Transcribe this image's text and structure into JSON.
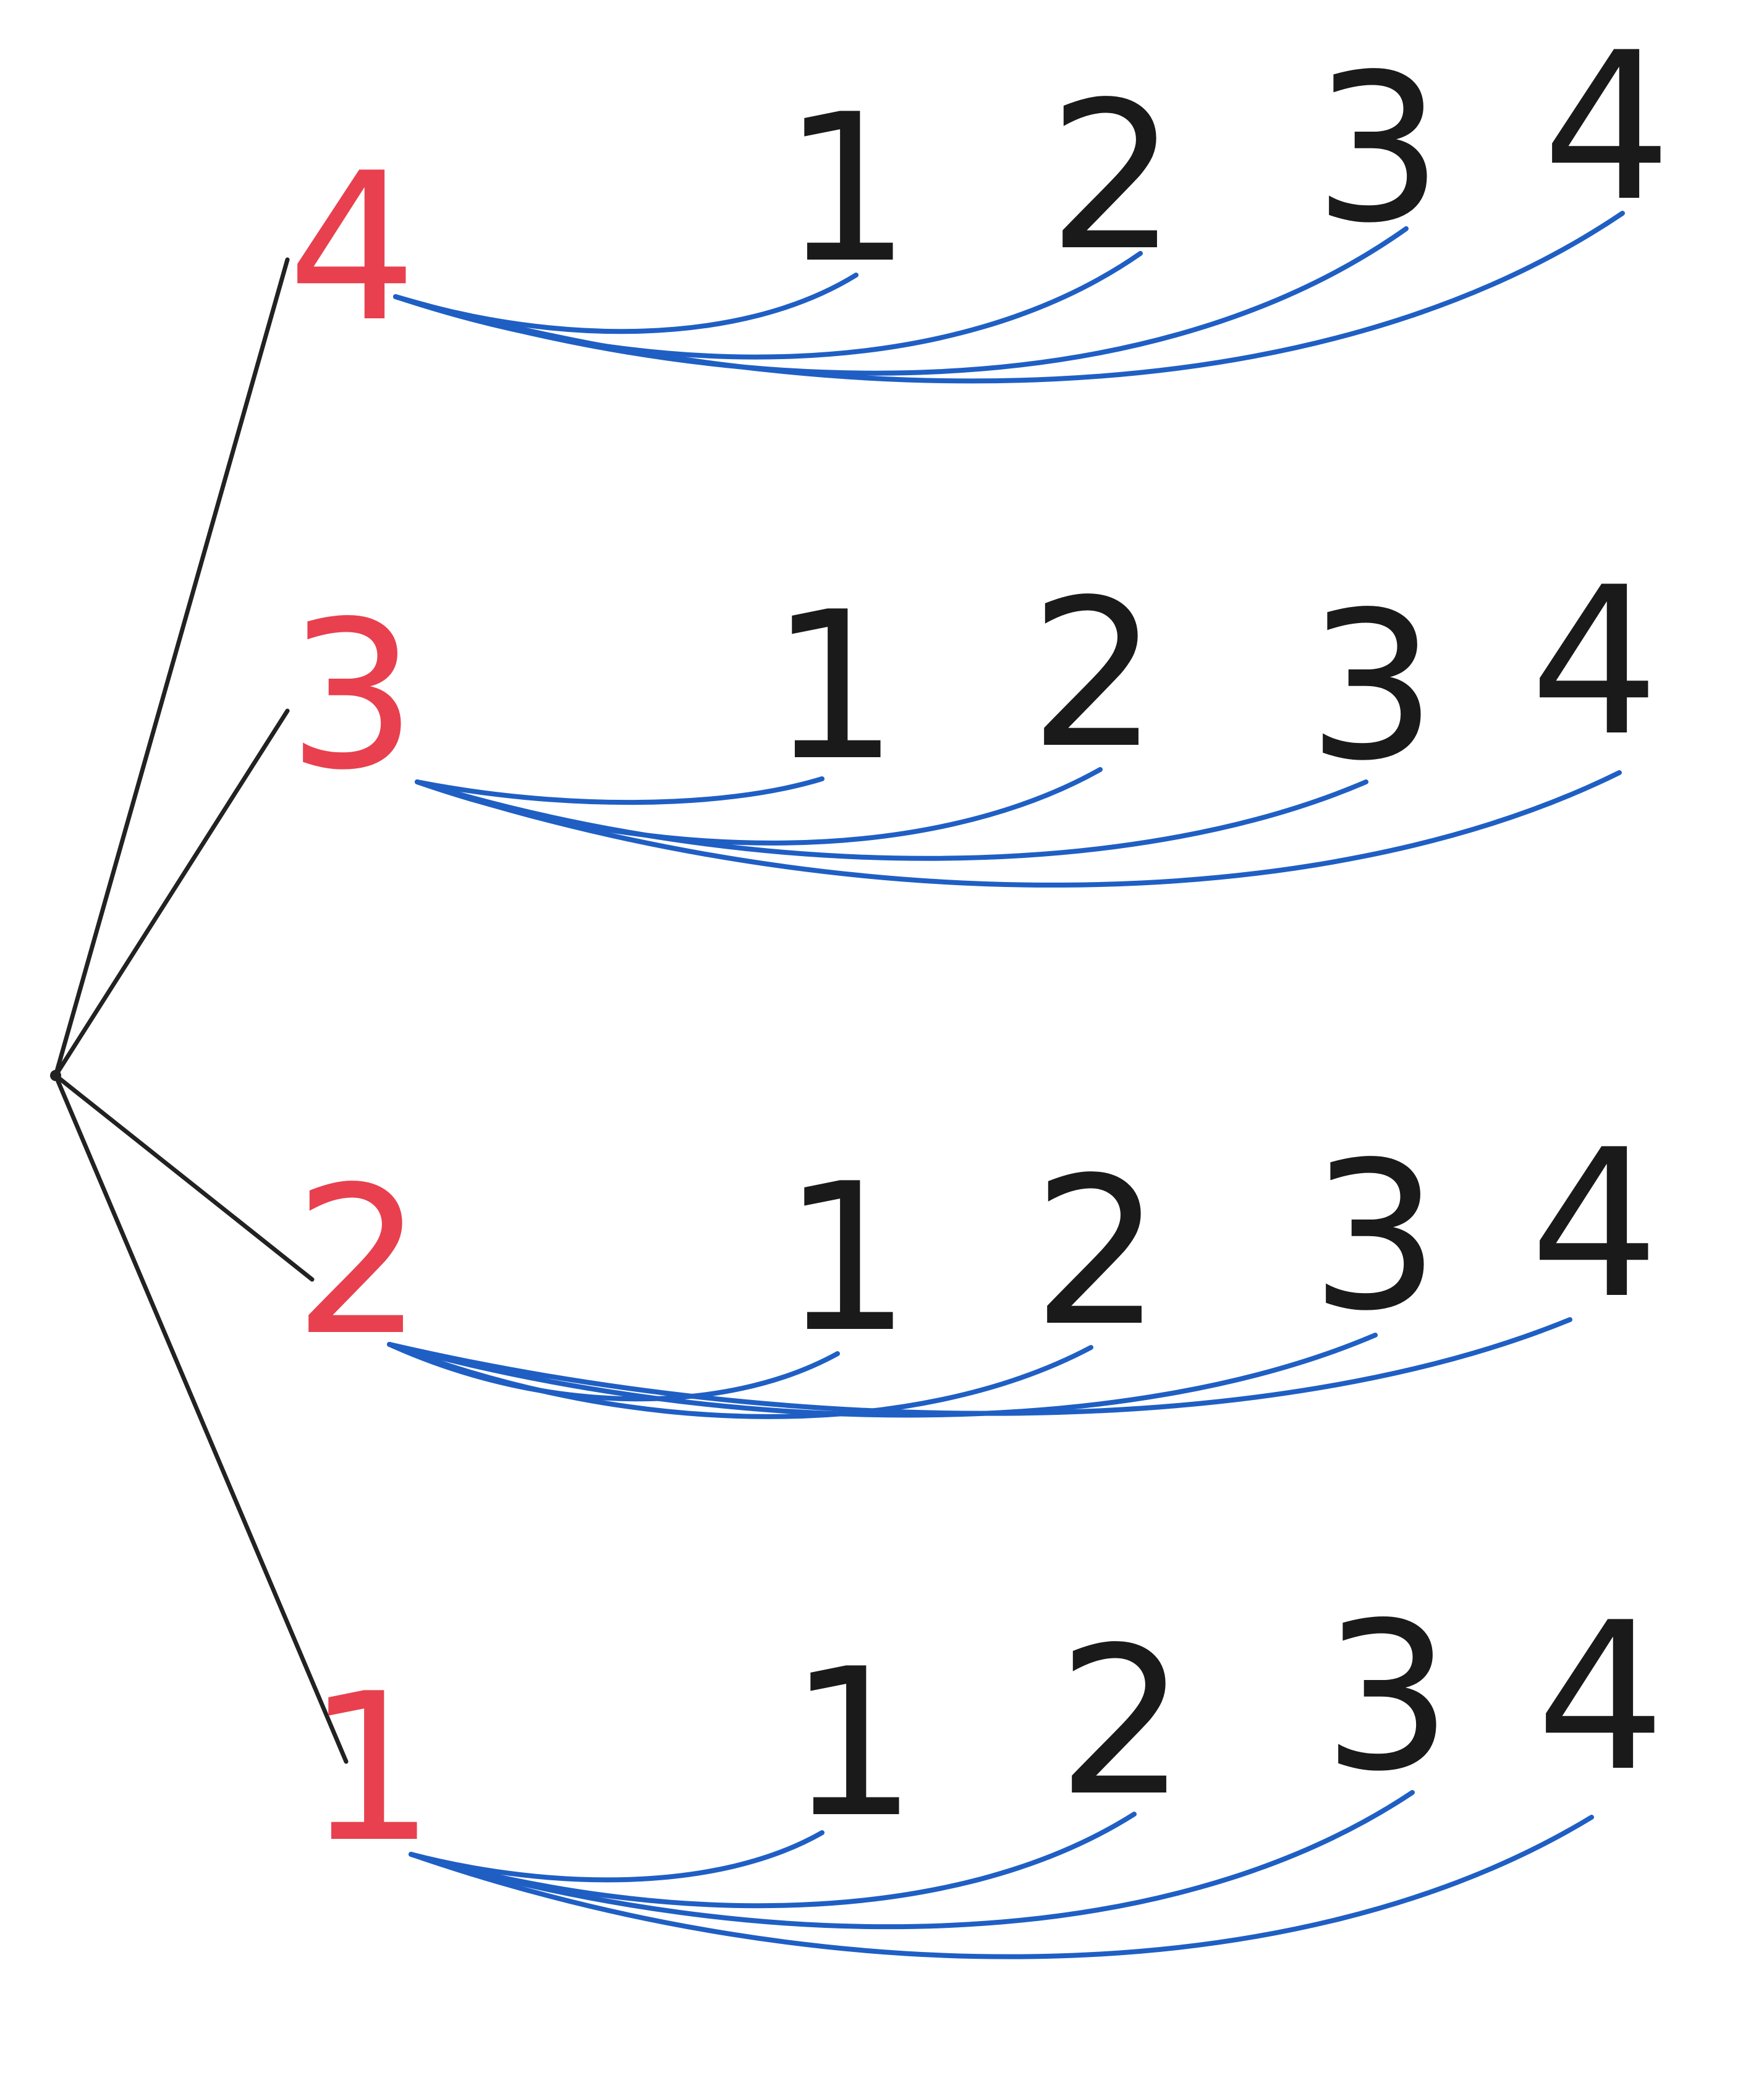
{
  "tree": {
    "first_color": "#e8404e",
    "second_color": "#1a1a1a",
    "link_color": "#1f5fc4",
    "branch_color": "#222222",
    "branches": [
      {
        "first": "4",
        "seconds": [
          "1",
          "2",
          "3",
          "4"
        ]
      },
      {
        "first": "3",
        "seconds": [
          "1",
          "2",
          "3",
          "4"
        ]
      },
      {
        "first": "2",
        "seconds": [
          "1",
          "2",
          "3",
          "4"
        ]
      },
      {
        "first": "1",
        "seconds": [
          "1",
          "2",
          "3",
          "4"
        ]
      }
    ]
  }
}
